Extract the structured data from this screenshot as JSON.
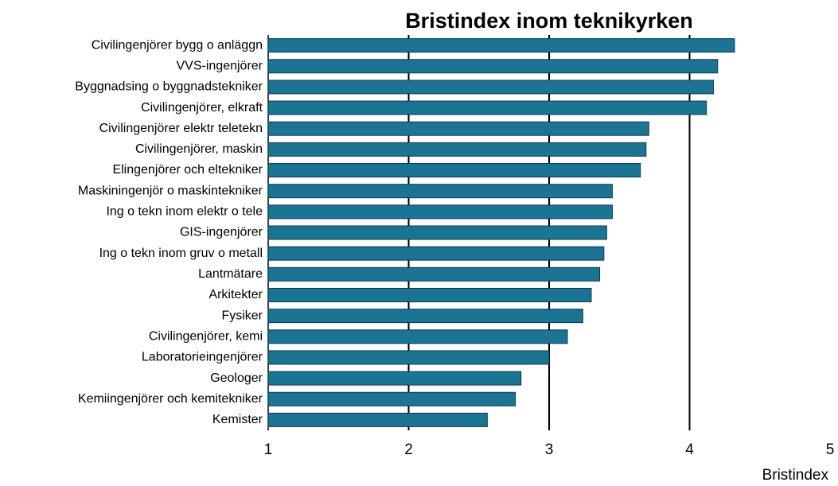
{
  "chart_data": {
    "type": "barh",
    "title": "Bristindex inom teknikyrken",
    "x_label": "Bristindex",
    "categories": [
      "Civilingenjörer bygg o anläggn",
      "VVS-ingenjörer",
      "Byggnadsing o byggnadstekniker",
      "Civilingenjörer, elkraft",
      "Civilingenjörer elektr teletekn",
      "Civilingenjörer, maskin",
      "Elingenjörer och eltekniker",
      "Maskiningenjör o maskintekniker",
      "Ing o tekn inom elektr o tele",
      "GIS-ingenjörer",
      "Ing o tekn inom gruv o metall",
      "Lantmätare",
      "Arkitekter",
      "Fysiker",
      "Civilingenjörer, kemi",
      "Laboratorieingenjörer",
      "Geologer",
      "Kemiingenjörer och kemitekniker",
      "Kemister"
    ],
    "values": [
      4.32,
      4.2,
      4.17,
      4.12,
      3.71,
      3.69,
      3.65,
      3.45,
      3.45,
      3.41,
      3.39,
      3.36,
      3.3,
      3.24,
      3.13,
      3.0,
      2.8,
      2.76,
      2.56
    ],
    "color": "#1b7493",
    "xlim": [
      1,
      5
    ],
    "xticks": [
      1,
      2,
      3,
      4,
      5
    ],
    "grid": true
  }
}
